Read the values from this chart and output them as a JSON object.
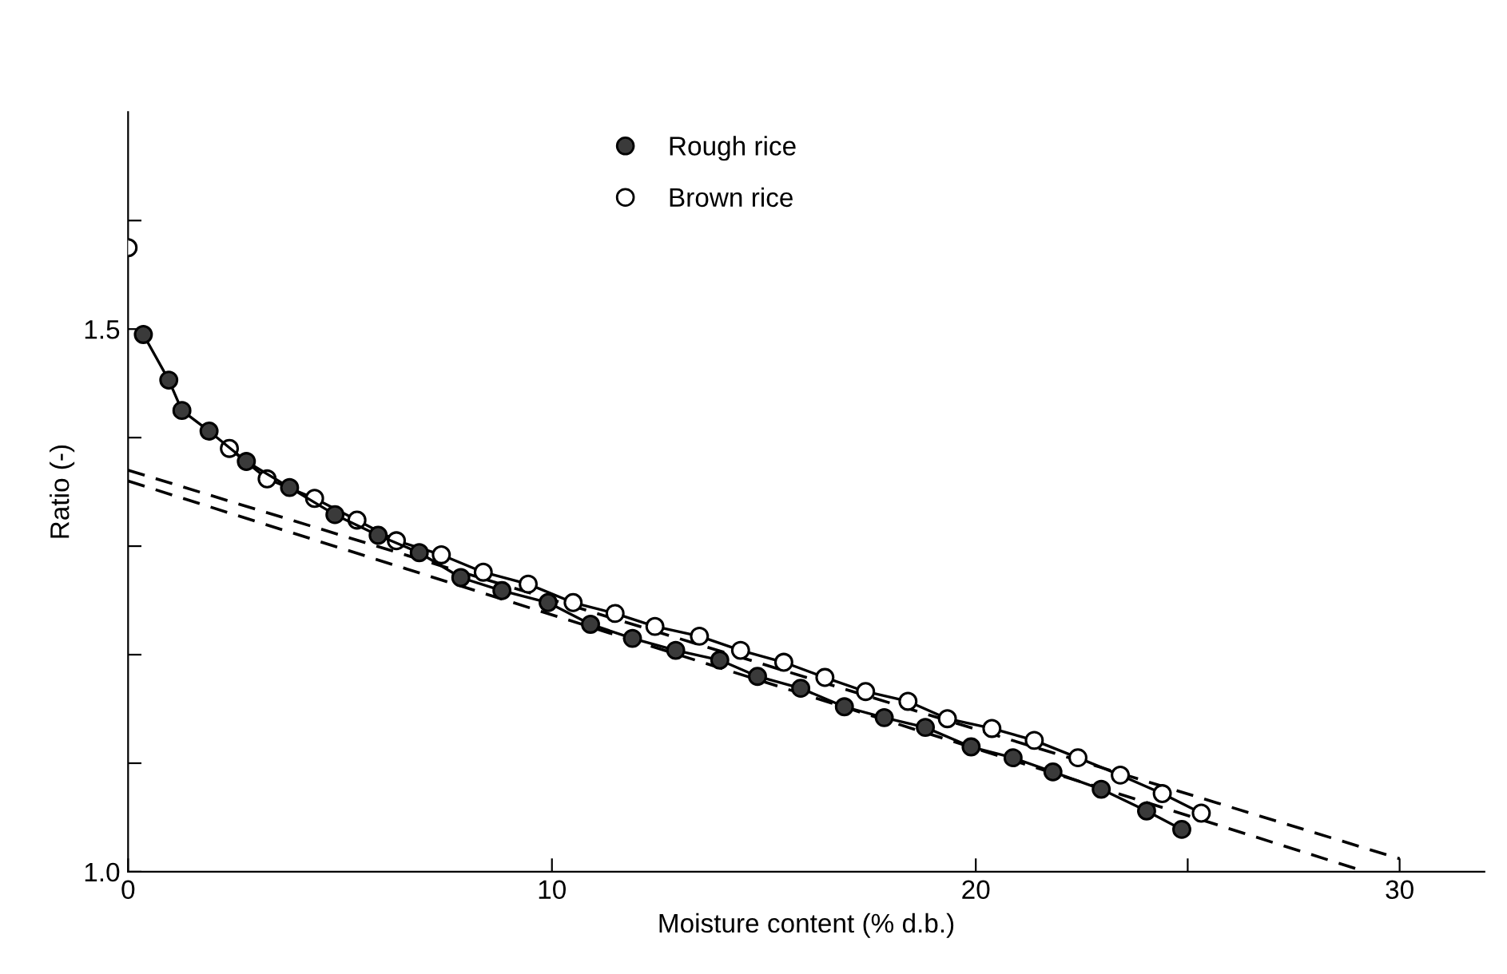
{
  "chart_data": {
    "type": "line",
    "xlabel": "Moisture content (% d.b.)",
    "ylabel": "Ratio (-)",
    "xlim": [
      0,
      32
    ],
    "ylim": [
      1.0,
      1.7
    ],
    "xticks": [
      0,
      10,
      20,
      {
        "value": 25,
        "label": null
      },
      30
    ],
    "yticks": [
      {
        "value": 1.0,
        "label": "1.0"
      },
      {
        "value": 1.1,
        "label": null
      },
      {
        "value": 1.2,
        "label": null
      },
      {
        "value": 1.3,
        "label": null
      },
      {
        "value": 1.4,
        "label": null
      },
      {
        "value": 1.5,
        "label": "1.5"
      },
      {
        "value": 1.6,
        "label": null
      }
    ],
    "grid": false,
    "legend": "top",
    "marker": "circle",
    "line_style": "solid",
    "series": [
      {
        "name": "Rough rice",
        "color": "#3a3a3a",
        "x": [
          0.36,
          0.96,
          1.27,
          1.91,
          2.79,
          3.81,
          4.88,
          5.9,
          6.87,
          7.85,
          8.82,
          9.91,
          10.91,
          11.9,
          12.92,
          13.96,
          14.85,
          15.87,
          16.9,
          17.84,
          18.81,
          19.89,
          20.88,
          21.82,
          22.96,
          24.03,
          24.86
        ],
        "values": [
          1.495,
          1.453,
          1.425,
          1.406,
          1.378,
          1.354,
          1.329,
          1.31,
          1.294,
          1.271,
          1.259,
          1.248,
          1.228,
          1.215,
          1.204,
          1.195,
          1.18,
          1.169,
          1.152,
          1.142,
          1.133,
          1.115,
          1.105,
          1.092,
          1.076,
          1.056,
          1.039
        ]
      },
      {
        "name": "Brown rice",
        "color": "#ffffff",
        "x": [
          0,
          0.36,
          0.96,
          1.27,
          1.91,
          2.39,
          3.28,
          4.4,
          5.4,
          6.33,
          7.39,
          8.38,
          9.44,
          10.5,
          11.49,
          12.43,
          13.48,
          14.45,
          15.47,
          16.44,
          17.4,
          18.4,
          19.33,
          20.38,
          21.38,
          22.41,
          23.41,
          24.4,
          25.32
        ],
        "values": [
          1.575,
          null,
          null,
          null,
          null,
          1.39,
          1.362,
          1.344,
          1.324,
          1.305,
          1.292,
          1.276,
          1.265,
          1.248,
          1.238,
          1.226,
          1.217,
          1.204,
          1.193,
          1.179,
          1.166,
          1.157,
          1.141,
          1.132,
          1.121,
          1.105,
          1.089,
          1.072,
          1.054
        ]
      },
      {
        "color": "#000000",
        "marker": "none",
        "line_style": "dashed",
        "x": [
          0,
          30
        ],
        "values": [
          1.37,
          1.012
        ]
      },
      {
        "color": "#000000",
        "marker": "none",
        "line_style": "dashed",
        "x": [
          0,
          29.2
        ],
        "values": [
          1.36,
          1.0
        ]
      }
    ]
  }
}
